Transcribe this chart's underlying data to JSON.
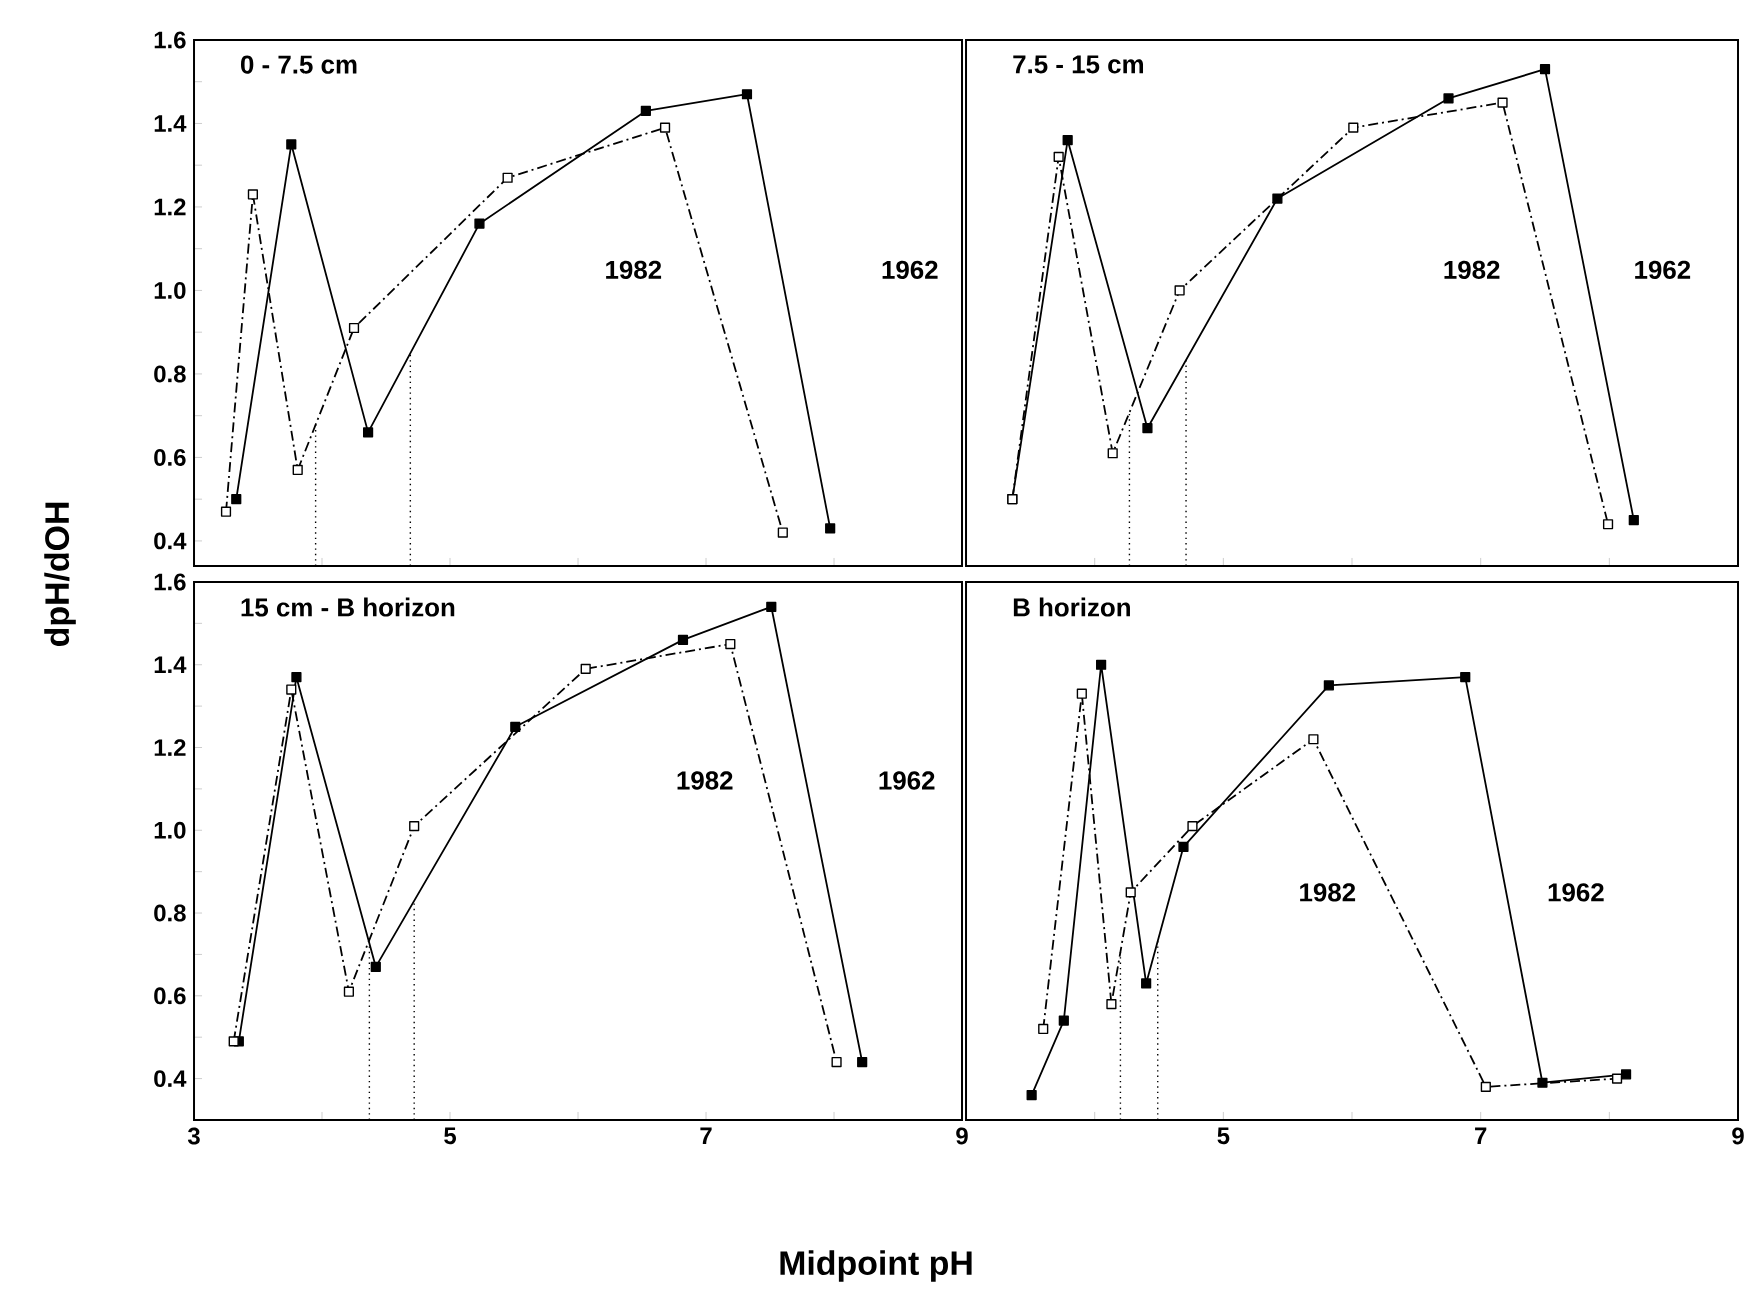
{
  "chart_data": [
    {
      "type": "line",
      "title": "0 - 7.5 cm",
      "ylabel": "dpH/dOH",
      "xlim": [
        3,
        9
      ],
      "ylim": [
        0.34,
        1.6
      ],
      "tick_labels": "y",
      "grid": false,
      "marker": "square",
      "xticks": [
        3,
        {
          "value": 4,
          "label": null
        },
        5,
        {
          "value": 6,
          "label": null
        },
        7,
        {
          "value": 8,
          "label": null
        },
        {
          "value": 9,
          "label": null
        }
      ],
      "yticks": [
        0.4,
        {
          "value": 0.5,
          "label": null
        },
        0.6,
        {
          "value": 0.7,
          "label": null
        },
        0.8,
        {
          "value": 0.9,
          "label": null
        },
        {
          "value": 1,
          "label": "1.0"
        },
        {
          "value": 1.1,
          "label": null
        },
        1.2,
        {
          "value": 1.3,
          "label": null
        },
        1.4,
        {
          "value": 1.5,
          "label": null
        },
        1.6
      ],
      "series": [
        {
          "color": "#000000",
          "line_style": "solid",
          "x": [
            3.33,
            3.76,
            4.36,
            5.23,
            6.53,
            7.32,
            7.97
          ],
          "values": [
            0.5,
            1.35,
            0.66,
            1.16,
            1.43,
            1.47,
            0.43
          ]
        },
        {
          "color": "#000000",
          "line_style": "dashed",
          "x": [
            3.25,
            3.46,
            3.81,
            4.25,
            5.45,
            6.68,
            7.6
          ],
          "values": [
            0.47,
            1.23,
            0.57,
            0.91,
            1.27,
            1.39,
            0.42
          ]
        }
      ],
      "ref_lines": [
        {
          "axis": "x",
          "value": 3.95,
          "color": "#000000",
          "line_style": "dotted"
        },
        {
          "axis": "x",
          "value": 4.69,
          "color": "#000000",
          "line_style": "dotted"
        }
      ],
      "annotations": [
        "1982",
        "1962"
      ]
    },
    {
      "type": "line",
      "title": "7.5 - 15 cm",
      "xlim": [
        3,
        9
      ],
      "ylim": [
        0.34,
        1.6
      ],
      "tick_labels": false,
      "grid": false,
      "marker": "square",
      "xticks": [
        3,
        {
          "value": 4,
          "label": null
        },
        5,
        {
          "value": 6,
          "label": null
        },
        7,
        {
          "value": 8,
          "label": null
        },
        9
      ],
      "series": [
        {
          "color": "#000000",
          "line_style": "solid",
          "x": [
            3.36,
            3.79,
            4.41,
            5.42,
            6.75,
            7.5,
            8.19
          ],
          "values": [
            0.5,
            1.36,
            0.67,
            1.22,
            1.46,
            1.53,
            0.45
          ]
        },
        {
          "color": "#000000",
          "line_style": "dashed",
          "x": [
            3.36,
            3.72,
            4.14,
            4.66,
            6.01,
            7.17,
            7.99
          ],
          "values": [
            0.5,
            1.32,
            0.61,
            1.0,
            1.39,
            1.45,
            0.44
          ]
        }
      ],
      "ref_lines": [
        {
          "axis": "x",
          "value": 4.27,
          "color": "#000000",
          "line_style": "dotted"
        },
        {
          "axis": "x",
          "value": 4.71,
          "color": "#000000",
          "line_style": "dotted"
        }
      ],
      "annotations": [
        "1982",
        "1962"
      ]
    },
    {
      "type": "line",
      "title": "15 cm - B horizon",
      "xlabel": "Midpoint pH",
      "xlim": [
        3,
        9
      ],
      "ylim": [
        0.3,
        1.6
      ],
      "grid": false,
      "marker": "square",
      "xticks": [
        3,
        {
          "value": 4,
          "label": null
        },
        5,
        {
          "value": 6,
          "label": null
        },
        7,
        {
          "value": 8,
          "label": null
        },
        9
      ],
      "yticks": [
        0.4,
        {
          "value": 0.5,
          "label": null
        },
        0.6,
        {
          "value": 0.7,
          "label": null
        },
        0.8,
        {
          "value": 0.9,
          "label": null
        },
        {
          "value": 1,
          "label": "1.0"
        },
        {
          "value": 1.1,
          "label": null
        },
        1.2,
        {
          "value": 1.3,
          "label": null
        },
        1.4,
        {
          "value": 1.5,
          "label": null
        },
        1.6
      ],
      "series": [
        {
          "color": "#000000",
          "line_style": "solid",
          "x": [
            3.35,
            3.8,
            4.42,
            5.51,
            6.82,
            7.51,
            8.22
          ],
          "values": [
            0.49,
            1.37,
            0.67,
            1.25,
            1.46,
            1.54,
            0.44
          ]
        },
        {
          "color": "#000000",
          "line_style": "dashed",
          "x": [
            3.31,
            3.76,
            4.21,
            4.72,
            6.06,
            7.19,
            8.02
          ],
          "values": [
            0.49,
            1.34,
            0.61,
            1.01,
            1.39,
            1.45,
            0.44
          ]
        }
      ],
      "ref_lines": [
        {
          "axis": "x",
          "value": 4.37,
          "color": "#000000",
          "line_style": "dotted"
        },
        {
          "axis": "x",
          "value": 4.72,
          "color": "#000000",
          "line_style": "dotted"
        }
      ],
      "annotations": [
        "1982",
        "1962"
      ]
    },
    {
      "type": "line",
      "title": "B horizon",
      "xlim": [
        3,
        9
      ],
      "ylim": [
        0.3,
        1.6
      ],
      "tick_labels": "x",
      "grid": false,
      "marker": "square",
      "xticks": [
        {
          "value": 3,
          "label": null
        },
        {
          "value": 4,
          "label": null
        },
        5,
        {
          "value": 6,
          "label": null
        },
        7,
        {
          "value": 8,
          "label": null
        },
        9
      ],
      "series": [
        {
          "color": "#000000",
          "line_style": "solid",
          "x": [
            3.51,
            3.76,
            4.05,
            4.4,
            4.69,
            5.82,
            6.88,
            7.48,
            8.13
          ],
          "values": [
            0.36,
            0.54,
            1.4,
            0.63,
            0.96,
            1.35,
            1.37,
            0.39,
            0.41
          ]
        },
        {
          "color": "#000000",
          "line_style": "dashed",
          "x": [
            3.6,
            3.9,
            4.13,
            4.28,
            4.76,
            5.7,
            7.04,
            8.06
          ],
          "values": [
            0.52,
            1.33,
            0.58,
            0.85,
            1.01,
            1.22,
            0.38,
            0.4
          ]
        }
      ],
      "ref_lines": [
        {
          "axis": "x",
          "value": 4.2,
          "color": "#000000",
          "line_style": "dotted"
        },
        {
          "axis": "x",
          "value": 4.49,
          "color": "#000000",
          "line_style": "dotted"
        }
      ],
      "annotations": [
        "1982",
        "1962"
      ]
    }
  ]
}
